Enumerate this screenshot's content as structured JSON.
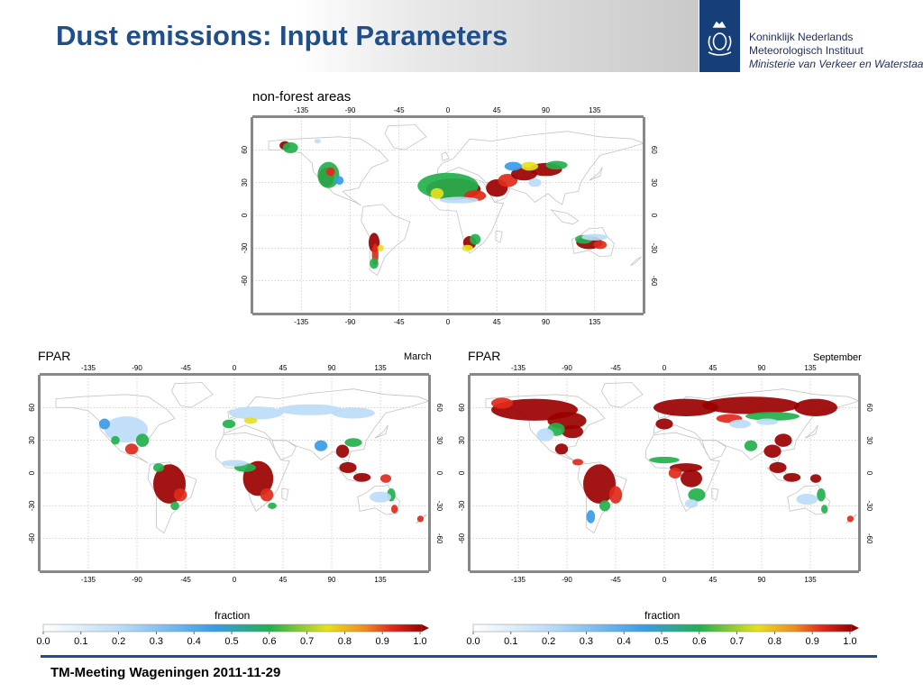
{
  "header": {
    "title": "Dust emissions: Input Parameters",
    "logo": {
      "line1": "Koninklijk Nederlands",
      "line2": "Meteorologisch Instituut",
      "line3": "Ministerie van Verkeer en Waterstaat"
    }
  },
  "maps": {
    "nonforest": {
      "title": "non-forest areas"
    },
    "march": {
      "title": "FPAR",
      "month": "March"
    },
    "september": {
      "title": "FPAR",
      "month": "September"
    },
    "lon_ticks": [
      "-135",
      "-90",
      "-45",
      "0",
      "45",
      "90",
      "135"
    ],
    "lat_ticks": [
      "60",
      "30",
      "0",
      "-30",
      "-60"
    ]
  },
  "colorbar": {
    "label": "fraction",
    "ticks": [
      "0.0",
      "0.1",
      "0.2",
      "0.3",
      "0.4",
      "0.5",
      "0.6",
      "0.7",
      "0.8",
      "0.9",
      "1.0"
    ]
  },
  "footer": {
    "text": "TM-Meeting Wageningen 2011-11-29"
  },
  "colors": {
    "title_blue": "#1f4f8b",
    "dark_red": "#9b0000",
    "red": "#e02a1a",
    "orange": "#f08a1e",
    "yellow": "#e6e01e",
    "green": "#22b14c",
    "blue": "#3a9be8",
    "light_blue": "#bcdcf7"
  }
}
